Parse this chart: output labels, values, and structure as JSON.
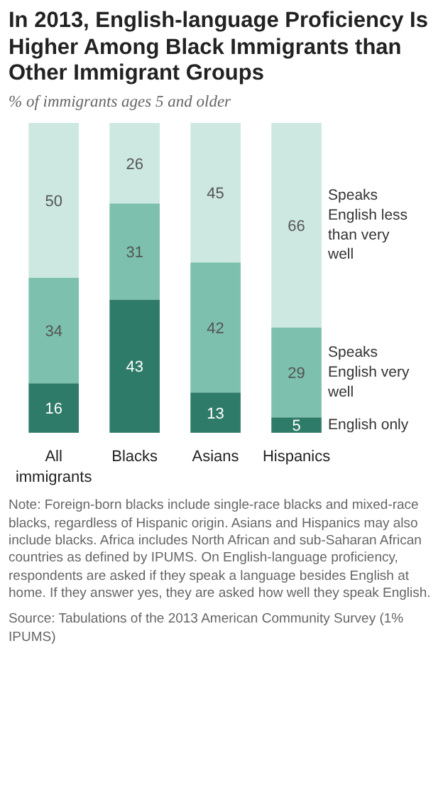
{
  "chart_data": {
    "type": "bar",
    "stacked": true,
    "title": "In 2013, English-language  Proficiency Is Higher Among Black Immigrants than Other Immigrant Groups",
    "subtitle": "% of immigrants ages 5 and older",
    "categories": [
      "All immigrants",
      "Blacks",
      "Asians",
      "Hispanics"
    ],
    "series": [
      {
        "name": "English only",
        "color": "#2f7b69",
        "values": [
          16,
          43,
          13,
          5
        ]
      },
      {
        "name": "Speaks English very well",
        "color": "#7cc0ad",
        "values": [
          34,
          31,
          42,
          29
        ]
      },
      {
        "name": "Speaks English less than very well",
        "color": "#cde8e0",
        "values": [
          50,
          26,
          45,
          66
        ]
      }
    ],
    "data_labels": true,
    "grid": false,
    "annotations": [
      "Note: Foreign-born blacks include single-race blacks and mixed-race blacks, regardless of Hispanic origin. Asians and Hispanics may also include blacks. Africa includes North African and sub-Saharan African countries as defined by IPUMS. On English-language proficiency, respondents are asked if they speak a language besides English at home. If they answer yes, they are asked how well they speak English.",
      "Source: Tabulations of the 2013 American Community Survey (1% IPUMS)"
    ]
  }
}
